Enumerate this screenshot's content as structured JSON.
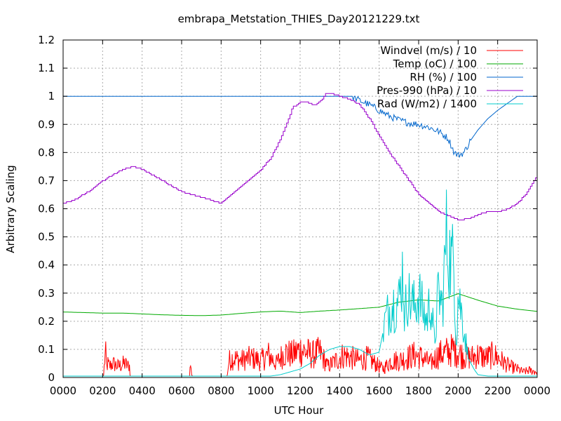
{
  "chart_data": {
    "type": "line",
    "title": "embrapa_Metstation_THIES_Day20121229.txt",
    "xlabel": "UTC Hour",
    "ylabel": "Arbitrary Scaling",
    "xlim": [
      0,
      24
    ],
    "ylim": [
      0,
      1.2
    ],
    "grid": true,
    "legend_position": "top-right",
    "x_ticks": [
      0,
      2,
      4,
      6,
      8,
      10,
      12,
      14,
      16,
      18,
      20,
      22,
      24
    ],
    "x_tick_labels": [
      "0000",
      "0200",
      "0400",
      "0600",
      "0800",
      "1000",
      "1200",
      "1400",
      "1600",
      "1800",
      "2000",
      "2200",
      "0000"
    ],
    "y_ticks": [
      0,
      0.1,
      0.2,
      0.3,
      0.4,
      0.5,
      0.6,
      0.7,
      0.8,
      0.9,
      1,
      1.1,
      1.2
    ],
    "y_tick_labels": [
      "0",
      "0.1",
      "0.2",
      "0.3",
      "0.4",
      "0.5",
      "0.6",
      "0.7",
      "0.8",
      "0.9",
      "1",
      "1.1",
      "1.2"
    ],
    "series": [
      {
        "name": "Windvel (m/s) / 10",
        "color": "#ff0000",
        "style": "noisy",
        "x": [
          0,
          2.05,
          2.1,
          2.15,
          2.2,
          2.25,
          2.35,
          2.5,
          2.8,
          3.1,
          3.3,
          3.35,
          3.4,
          6.4,
          6.45,
          6.5,
          6.55,
          8.3,
          8.4,
          8.6,
          9.0,
          9.5,
          10.0,
          10.4,
          10.8,
          11.2,
          11.6,
          12.0,
          12.3,
          12.6,
          13.0,
          13.4,
          13.8,
          14.2,
          14.6,
          15.0,
          15.4,
          15.8,
          16.2,
          16.6,
          17.0,
          17.4,
          17.8,
          18.2,
          18.6,
          19.0,
          19.4,
          19.8,
          20.2,
          20.6,
          21.0,
          21.4,
          21.8,
          22.2,
          22.6,
          23.0,
          23.3,
          23.6,
          24
        ],
        "y": [
          0.005,
          0.005,
          0.06,
          0.09,
          0.03,
          0.05,
          0.04,
          0.05,
          0.04,
          0.05,
          0.04,
          0.05,
          0.005,
          0.005,
          0.05,
          0.01,
          0.005,
          0.005,
          0.06,
          0.07,
          0.06,
          0.07,
          0.06,
          0.08,
          0.05,
          0.09,
          0.08,
          0.1,
          0.09,
          0.08,
          0.09,
          0.04,
          0.06,
          0.08,
          0.07,
          0.06,
          0.07,
          0.05,
          0.03,
          0.06,
          0.06,
          0.07,
          0.08,
          0.07,
          0.05,
          0.08,
          0.09,
          0.1,
          0.08,
          0.07,
          0.08,
          0.07,
          0.08,
          0.06,
          0.04,
          0.03,
          0.02,
          0.025,
          0.02
        ]
      },
      {
        "name": "Temp (oC) / 100",
        "color": "#00aa00",
        "style": "smooth",
        "x": [
          0,
          1,
          2,
          3,
          4,
          5,
          6,
          7,
          8,
          9,
          10,
          11,
          12,
          13,
          14,
          15,
          16,
          17,
          18,
          19,
          20,
          21,
          22,
          23,
          24
        ],
        "y": [
          0.233,
          0.231,
          0.229,
          0.229,
          0.226,
          0.223,
          0.221,
          0.22,
          0.222,
          0.228,
          0.233,
          0.236,
          0.231,
          0.236,
          0.24,
          0.245,
          0.25,
          0.268,
          0.276,
          0.272,
          0.298,
          0.275,
          0.254,
          0.243,
          0.235
        ]
      },
      {
        "name": "RH (%) / 100",
        "color": "#0066cc",
        "style": "rh",
        "x": [
          0,
          14.6,
          15.0,
          15.5,
          16.0,
          16.5,
          17.0,
          17.5,
          18.0,
          18.5,
          19.0,
          19.5,
          19.8,
          20.0,
          20.3,
          20.6,
          21.0,
          21.5,
          22.0,
          22.5,
          23.0,
          24
        ],
        "y": [
          1.0,
          1.0,
          0.985,
          0.97,
          0.95,
          0.93,
          0.915,
          0.905,
          0.9,
          0.89,
          0.875,
          0.85,
          0.8,
          0.79,
          0.8,
          0.84,
          0.88,
          0.92,
          0.95,
          0.975,
          1.0,
          1.0
        ]
      },
      {
        "name": "Pres-990 (hPa) / 10",
        "color": "#9900cc",
        "style": "step",
        "x": [
          0,
          0.5,
          1,
          1.5,
          2,
          2.5,
          3,
          3.5,
          4,
          4.5,
          5,
          5.5,
          6,
          6.5,
          7,
          7.5,
          8,
          8.5,
          9,
          9.5,
          10,
          10.5,
          11,
          11.3,
          11.6,
          12,
          12.3,
          12.7,
          13,
          13.3,
          13.6,
          14,
          14.5,
          15,
          15.5,
          16,
          16.5,
          17,
          17.5,
          18,
          18.5,
          19,
          19.5,
          20,
          20.5,
          21,
          21.5,
          22,
          22.5,
          23,
          23.5,
          24
        ],
        "y": [
          0.62,
          0.63,
          0.65,
          0.67,
          0.7,
          0.72,
          0.74,
          0.75,
          0.74,
          0.72,
          0.7,
          0.68,
          0.66,
          0.65,
          0.64,
          0.63,
          0.62,
          0.65,
          0.68,
          0.71,
          0.74,
          0.78,
          0.85,
          0.9,
          0.96,
          0.98,
          0.98,
          0.97,
          0.98,
          1.01,
          1.01,
          1.0,
          0.99,
          0.97,
          0.92,
          0.86,
          0.8,
          0.75,
          0.7,
          0.65,
          0.62,
          0.59,
          0.575,
          0.56,
          0.565,
          0.58,
          0.59,
          0.59,
          0.6,
          0.62,
          0.66,
          0.72
        ]
      },
      {
        "name": "Rad (W/m2) / 1400",
        "color": "#00cccc",
        "style": "rad",
        "x": [
          0,
          10.5,
          11.0,
          11.5,
          12.0,
          12.5,
          13.0,
          13.5,
          14.0,
          14.5,
          15.0,
          15.5,
          16.0,
          16.3,
          16.6,
          17.0,
          17.2,
          17.3,
          17.4,
          17.6,
          17.8,
          18.0,
          18.2,
          18.4,
          18.6,
          18.8,
          19.0,
          19.2,
          19.4,
          19.6,
          19.8,
          19.9,
          20.0,
          20.2,
          20.5,
          20.8,
          21.0,
          21.5,
          22.0,
          24
        ],
        "y": [
          0.005,
          0.005,
          0.01,
          0.02,
          0.03,
          0.05,
          0.08,
          0.1,
          0.11,
          0.11,
          0.1,
          0.08,
          0.09,
          0.2,
          0.26,
          0.27,
          0.39,
          0.2,
          0.3,
          0.27,
          0.25,
          0.3,
          0.24,
          0.2,
          0.28,
          0.12,
          0.3,
          0.25,
          0.5,
          0.42,
          0.4,
          0.12,
          0.3,
          0.22,
          0.07,
          0.03,
          0.01,
          0.005,
          0.005,
          0.005
        ]
      }
    ]
  }
}
